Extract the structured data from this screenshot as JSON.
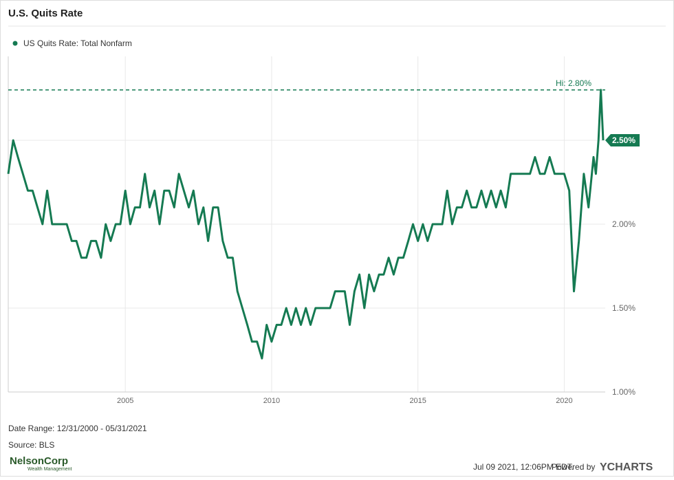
{
  "chart_data": {
    "type": "line",
    "title": "U.S. Quits Rate",
    "series": [
      {
        "name": "US Quits Rate: Total Nonfarm",
        "color": "#157a52",
        "x": [
          2001.0,
          2001.17,
          2001.33,
          2001.5,
          2001.67,
          2001.83,
          2002.0,
          2002.17,
          2002.33,
          2002.5,
          2002.67,
          2002.83,
          2003.0,
          2003.17,
          2003.33,
          2003.5,
          2003.67,
          2003.83,
          2004.0,
          2004.17,
          2004.33,
          2004.5,
          2004.67,
          2004.83,
          2005.0,
          2005.17,
          2005.33,
          2005.5,
          2005.67,
          2005.83,
          2006.0,
          2006.17,
          2006.33,
          2006.5,
          2006.67,
          2006.83,
          2007.0,
          2007.17,
          2007.33,
          2007.5,
          2007.67,
          2007.83,
          2008.0,
          2008.17,
          2008.33,
          2008.5,
          2008.67,
          2008.83,
          2009.0,
          2009.17,
          2009.33,
          2009.5,
          2009.67,
          2009.83,
          2010.0,
          2010.17,
          2010.33,
          2010.5,
          2010.67,
          2010.83,
          2011.0,
          2011.17,
          2011.33,
          2011.5,
          2011.67,
          2011.83,
          2012.0,
          2012.17,
          2012.33,
          2012.5,
          2012.67,
          2012.83,
          2013.0,
          2013.17,
          2013.33,
          2013.5,
          2013.67,
          2013.83,
          2014.0,
          2014.17,
          2014.33,
          2014.5,
          2014.67,
          2014.83,
          2015.0,
          2015.17,
          2015.33,
          2015.5,
          2015.67,
          2015.83,
          2016.0,
          2016.17,
          2016.33,
          2016.5,
          2016.67,
          2016.83,
          2017.0,
          2017.17,
          2017.33,
          2017.5,
          2017.67,
          2017.83,
          2018.0,
          2018.17,
          2018.33,
          2018.5,
          2018.67,
          2018.83,
          2019.0,
          2019.17,
          2019.33,
          2019.5,
          2019.67,
          2019.83,
          2020.0,
          2020.17,
          2020.33,
          2020.5,
          2020.67,
          2020.83,
          2021.0,
          2021.08,
          2021.17,
          2021.25,
          2021.33
        ],
        "values": [
          2.3,
          2.5,
          2.4,
          2.3,
          2.2,
          2.2,
          2.1,
          2.0,
          2.2,
          2.0,
          2.0,
          2.0,
          2.0,
          1.9,
          1.9,
          1.8,
          1.8,
          1.9,
          1.9,
          1.8,
          2.0,
          1.9,
          2.0,
          2.0,
          2.2,
          2.0,
          2.1,
          2.1,
          2.3,
          2.1,
          2.2,
          2.0,
          2.2,
          2.2,
          2.1,
          2.3,
          2.2,
          2.1,
          2.2,
          2.0,
          2.1,
          1.9,
          2.1,
          2.1,
          1.9,
          1.8,
          1.8,
          1.6,
          1.5,
          1.4,
          1.3,
          1.3,
          1.2,
          1.4,
          1.3,
          1.4,
          1.4,
          1.5,
          1.4,
          1.5,
          1.4,
          1.5,
          1.4,
          1.5,
          1.5,
          1.5,
          1.5,
          1.6,
          1.6,
          1.6,
          1.4,
          1.6,
          1.7,
          1.5,
          1.7,
          1.6,
          1.7,
          1.7,
          1.8,
          1.7,
          1.8,
          1.8,
          1.9,
          2.0,
          1.9,
          2.0,
          1.9,
          2.0,
          2.0,
          2.0,
          2.2,
          2.0,
          2.1,
          2.1,
          2.2,
          2.1,
          2.1,
          2.2,
          2.1,
          2.2,
          2.1,
          2.2,
          2.1,
          2.3,
          2.3,
          2.3,
          2.3,
          2.3,
          2.4,
          2.3,
          2.3,
          2.4,
          2.3,
          2.3,
          2.3,
          2.2,
          1.6,
          1.9,
          2.3,
          2.1,
          2.4,
          2.3,
          2.5,
          2.8,
          2.5
        ]
      }
    ],
    "xlim": [
      2001.0,
      2021.4
    ],
    "xticks": [
      2005,
      2010,
      2015,
      2020
    ],
    "ylim": [
      1.0,
      3.0
    ],
    "yticks": [
      {
        "value": 1.0,
        "label": "1.00%"
      },
      {
        "value": 1.5,
        "label": "1.50%"
      },
      {
        "value": 2.0,
        "label": "2.00%"
      },
      {
        "value": 2.5,
        "label": "2.50%"
      }
    ],
    "grid": true,
    "high": {
      "value": 2.8,
      "label": "Hi: 2.80%"
    },
    "last": {
      "value": 2.5,
      "label": "2.50%"
    },
    "date_range": "Date Range: 12/31/2000 - 05/31/2021",
    "source": "Source: BLS",
    "timestamp": "Jul 09 2021, 12:06PM EDT.",
    "powered_by": "Powered by",
    "brand": "YCHARTS",
    "logo": {
      "name": "NelsonCorp",
      "tagline": "Wealth Management"
    }
  }
}
